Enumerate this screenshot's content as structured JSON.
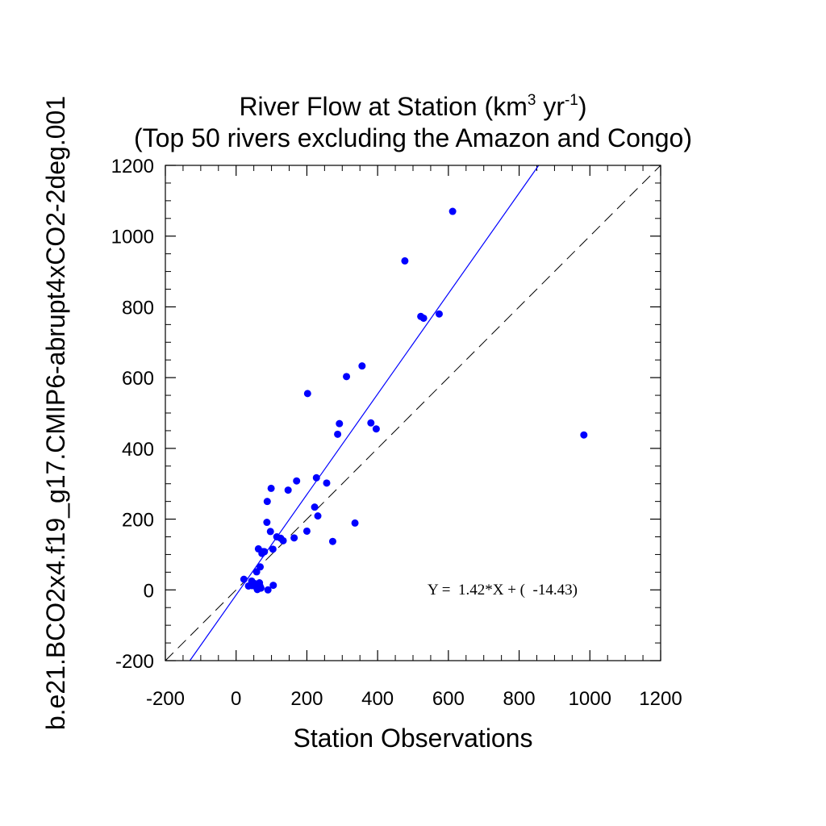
{
  "chart_data": {
    "type": "scatter",
    "title_parts": {
      "line1_prefix": "River Flow at Station (km",
      "line1_sup1": "3",
      "line1_mid": " yr",
      "line1_sup2": "-1",
      "line1_suffix": ")"
    },
    "subtitle": "(Top 50 rivers excluding the Amazon and Congo)",
    "xlabel": "Station Observations",
    "ylabel": "b.e21.BCO2x4.f19_g17.CMIP6-abrupt4xCO2-2deg.001",
    "xlim": [
      -200,
      1200
    ],
    "ylim": [
      -200,
      1200
    ],
    "xticks": [
      -200,
      0,
      200,
      400,
      600,
      800,
      1000,
      1200
    ],
    "yticks": [
      -200,
      0,
      200,
      400,
      600,
      800,
      1000,
      1200
    ],
    "xtick_labels": [
      "-200",
      "0",
      "200",
      "400",
      "600",
      "800",
      "1000",
      "1200"
    ],
    "ytick_labels": [
      "-200",
      "0",
      "200",
      "400",
      "600",
      "800",
      "1000",
      "1200"
    ],
    "grid": false,
    "point_color": "#0000ff",
    "fit_line": {
      "slope": 1.42,
      "intercept": -14.43,
      "color": "#0000ff"
    },
    "one_to_one_line": {
      "style": "dashed",
      "color": "#000000"
    },
    "annotation": "Y =  1.42*X + (  -14.43)",
    "points": [
      [
        612,
        1070
      ],
      [
        477,
        930
      ],
      [
        522,
        773
      ],
      [
        530,
        768
      ],
      [
        574,
        780
      ],
      [
        356,
        633
      ],
      [
        312,
        603
      ],
      [
        202,
        555
      ],
      [
        381,
        472
      ],
      [
        292,
        470
      ],
      [
        396,
        455
      ],
      [
        287,
        440
      ],
      [
        983,
        438
      ],
      [
        227,
        317
      ],
      [
        171,
        308
      ],
      [
        256,
        302
      ],
      [
        99,
        287
      ],
      [
        147,
        282
      ],
      [
        88,
        250
      ],
      [
        222,
        234
      ],
      [
        231,
        209
      ],
      [
        87,
        191
      ],
      [
        336,
        189
      ],
      [
        200,
        166
      ],
      [
        97,
        165
      ],
      [
        164,
        147
      ],
      [
        115,
        150
      ],
      [
        133,
        139
      ],
      [
        273,
        137
      ],
      [
        63,
        116
      ],
      [
        76,
        108
      ],
      [
        104,
        115
      ],
      [
        68,
        65
      ],
      [
        58,
        51
      ],
      [
        22,
        30
      ],
      [
        44,
        25
      ],
      [
        35,
        11
      ],
      [
        66,
        20
      ],
      [
        57,
        8
      ],
      [
        70,
        5
      ],
      [
        60,
        1
      ],
      [
        105,
        13
      ],
      [
        90,
        0
      ],
      [
        73,
        103
      ],
      [
        126,
        146
      ],
      [
        52,
        18
      ],
      [
        68,
        10
      ],
      [
        80,
        108
      ],
      [
        62,
        3
      ],
      [
        45,
        12
      ]
    ]
  }
}
